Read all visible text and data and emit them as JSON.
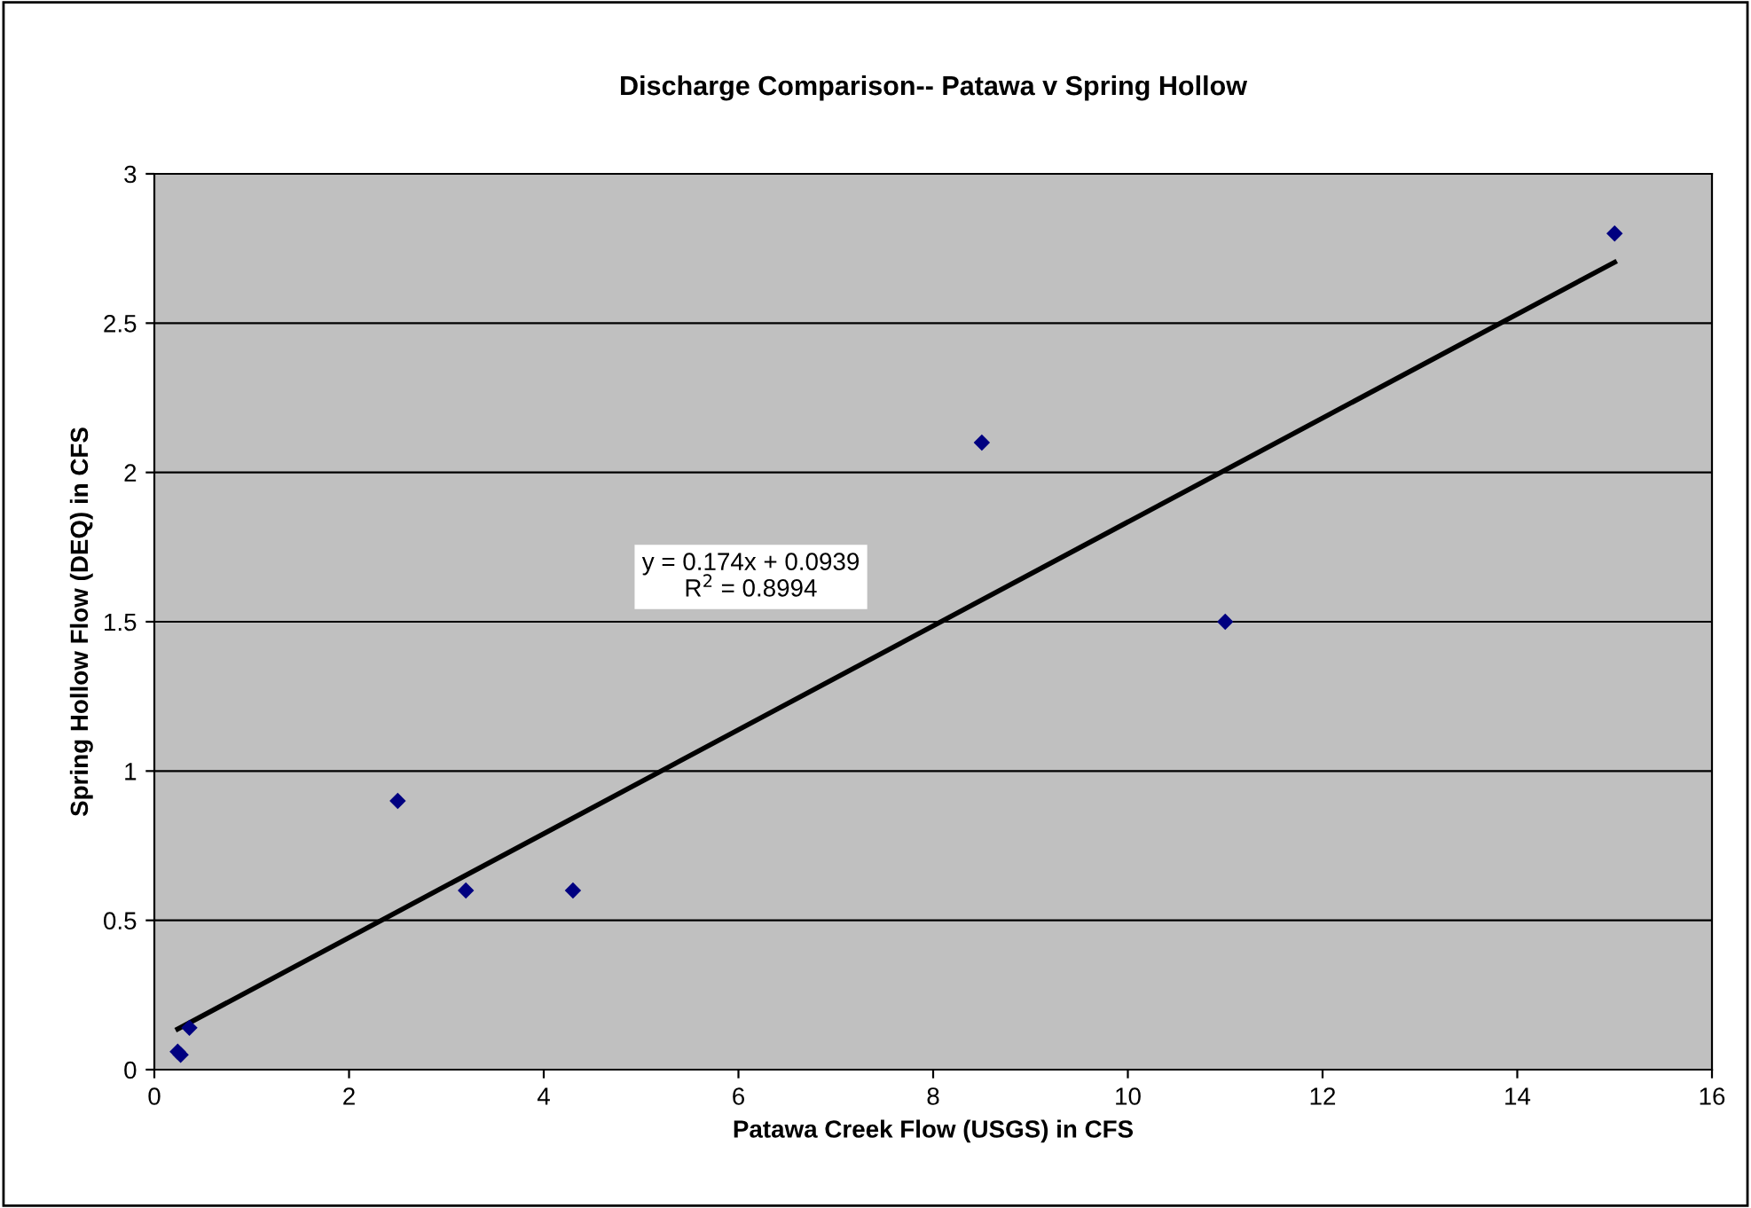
{
  "chart_data": {
    "type": "scatter",
    "title": "Discharge Comparison-- Patawa v Spring Hollow",
    "xlabel": "Patawa Creek Flow (USGS) in CFS",
    "ylabel": "Spring Hollow Flow (DEQ) in CFS",
    "series": [
      {
        "color": "#000080",
        "marker": "diamond",
        "x": [
          0.24,
          0.27,
          0.36,
          2.5,
          3.2,
          4.3,
          8.5,
          11,
          15
        ],
        "values": [
          0.06,
          0.05,
          0.14,
          0.9,
          0.6,
          0.6,
          2.1,
          1.5,
          2.8
        ]
      },
      {
        "type": "line",
        "color": "#000000",
        "line_style": "solid",
        "x": [
          0.24,
          15
        ],
        "values": [
          0.136,
          2.704
        ]
      }
    ],
    "annotations": [
      "y = 0.174x + 0.0939\nR$^{2}$ = 0.8994"
    ],
    "xlim": [
      0,
      16
    ],
    "xticks": [
      0,
      2,
      4,
      6,
      8,
      10,
      12,
      14,
      16
    ],
    "ylim": [
      0,
      3
    ],
    "yticks": [
      0,
      0.5,
      1,
      1.5,
      2,
      2.5,
      3
    ],
    "grid": "y"
  }
}
